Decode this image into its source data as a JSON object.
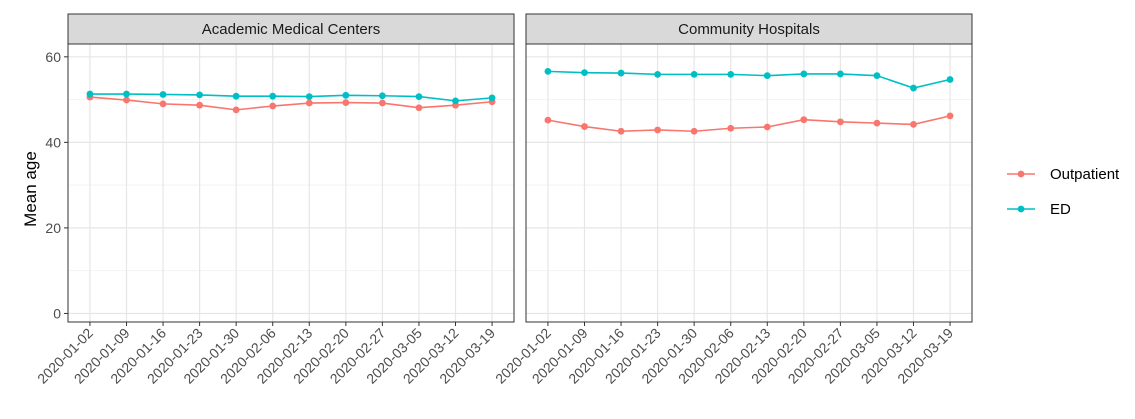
{
  "chart_data": {
    "type": "line",
    "ylabel": "Mean age",
    "xlabel": "",
    "ylim": [
      -2,
      63
    ],
    "yticks": [
      0,
      20,
      40,
      60
    ],
    "grid": true,
    "legend_position": "right",
    "x": [
      "2020-01-02",
      "2020-01-09",
      "2020-01-16",
      "2020-01-23",
      "2020-01-30",
      "2020-02-06",
      "2020-02-13",
      "2020-02-20",
      "2020-02-27",
      "2020-03-05",
      "2020-03-12",
      "2020-03-19"
    ],
    "legend": [
      {
        "name": "Outpatient",
        "color": "#F8766D"
      },
      {
        "name": "ED",
        "color": "#00BFC4"
      }
    ],
    "panels": [
      {
        "title": "Academic Medical Centers",
        "series": [
          {
            "name": "Outpatient",
            "color": "#F8766D",
            "values": [
              50.6,
              49.9,
              49.0,
              48.7,
              47.6,
              48.5,
              49.2,
              49.3,
              49.2,
              48.1,
              48.7,
              49.5
            ]
          },
          {
            "name": "ED",
            "color": "#00BFC4",
            "values": [
              51.3,
              51.3,
              51.2,
              51.1,
              50.8,
              50.8,
              50.7,
              51.0,
              50.9,
              50.7,
              49.7,
              50.4
            ]
          }
        ]
      },
      {
        "title": "Community Hospitals",
        "series": [
          {
            "name": "Outpatient",
            "color": "#F8766D",
            "values": [
              45.2,
              43.7,
              42.6,
              42.9,
              42.6,
              43.3,
              43.6,
              45.3,
              44.8,
              44.5,
              44.2,
              46.2
            ]
          },
          {
            "name": "ED",
            "color": "#00BFC4",
            "values": [
              56.6,
              56.3,
              56.2,
              55.9,
              55.9,
              55.9,
              55.6,
              56.0,
              56.0,
              55.6,
              52.7,
              54.7
            ]
          }
        ]
      }
    ]
  }
}
